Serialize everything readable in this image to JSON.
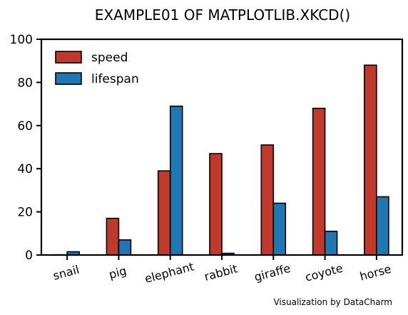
{
  "chart_data": {
    "type": "bar",
    "title": "EXAMPLE01 OF MATPLOTLIB.XKCD()",
    "xlabel": "",
    "ylabel": "",
    "ylim": [
      0,
      100
    ],
    "yticks": [
      "0",
      "20",
      "40",
      "60",
      "80",
      "100"
    ],
    "categories": [
      "snail",
      "pig",
      "elephant",
      "rabbit",
      "giraffe",
      "coyote",
      "horse"
    ],
    "series": [
      {
        "name": "speed",
        "color": "#c0392b",
        "values": [
          0.1,
          17,
          39,
          47,
          51,
          68,
          88
        ]
      },
      {
        "name": "lifespan",
        "color": "#1f77b4",
        "values": [
          1.5,
          7,
          69,
          0.8,
          24,
          11,
          27
        ]
      }
    ],
    "legend": "top-left",
    "grid": false,
    "annotation": "Visualization by DataCharm"
  }
}
